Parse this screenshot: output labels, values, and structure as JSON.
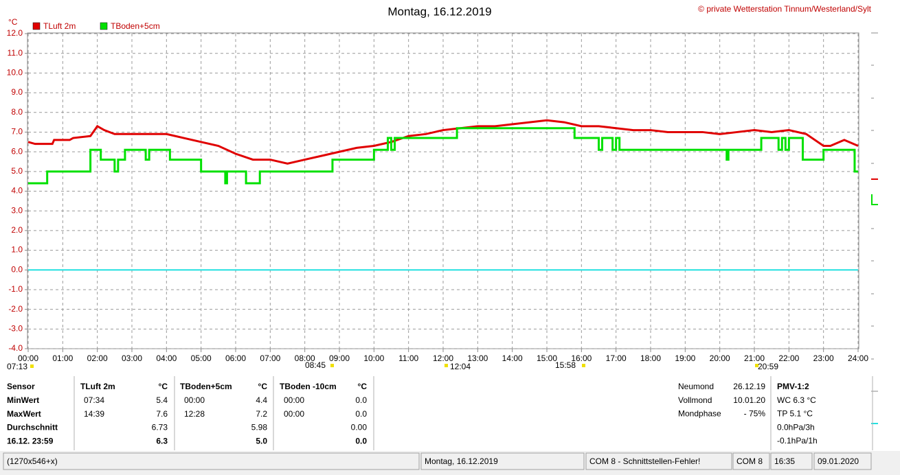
{
  "chart_data": {
    "type": "line",
    "title": "Montag, 16.12.2019",
    "copyright": "© private Wetterstation Tinnum/Westerland/Sylt",
    "y_label": "°C",
    "xlim": [
      0,
      24
    ],
    "ylim": [
      -4,
      12
    ],
    "xticks": [
      {
        "value": 0,
        "label": "00:00"
      },
      {
        "value": 1,
        "label": "01:00"
      },
      {
        "value": 2,
        "label": "02:00"
      },
      {
        "value": 3,
        "label": "03:00"
      },
      {
        "value": 4,
        "label": "04:00"
      },
      {
        "value": 5,
        "label": "05:00"
      },
      {
        "value": 6,
        "label": "06:00"
      },
      {
        "value": 7,
        "label": "07:00"
      },
      {
        "value": 8,
        "label": "08:00"
      },
      {
        "value": 9,
        "label": "09:00"
      },
      {
        "value": 10,
        "label": "10:00"
      },
      {
        "value": 11,
        "label": "11:00"
      },
      {
        "value": 12,
        "label": "12:00"
      },
      {
        "value": 13,
        "label": "13:00"
      },
      {
        "value": 14,
        "label": "14:00"
      },
      {
        "value": 15,
        "label": "15:00"
      },
      {
        "value": 16,
        "label": "16:00"
      },
      {
        "value": 17,
        "label": "17:00"
      },
      {
        "value": 18,
        "label": "18:00"
      },
      {
        "value": 19,
        "label": "19:00"
      },
      {
        "value": 20,
        "label": "20:00"
      },
      {
        "value": 21,
        "label": "21:00"
      },
      {
        "value": 22,
        "label": "22:00"
      },
      {
        "value": 23,
        "label": "23:00"
      },
      {
        "value": 24,
        "label": "24:00"
      }
    ],
    "yticks": [
      {
        "value": 12,
        "label": "12.0"
      },
      {
        "value": 11,
        "label": "11.0"
      },
      {
        "value": 10,
        "label": "10.0"
      },
      {
        "value": 9,
        "label": "9.0"
      },
      {
        "value": 8,
        "label": "8.0"
      },
      {
        "value": 7,
        "label": "7.0"
      },
      {
        "value": 6,
        "label": "6.0"
      },
      {
        "value": 5,
        "label": "5.0"
      },
      {
        "value": 4,
        "label": "4.0"
      },
      {
        "value": 3,
        "label": "3.0"
      },
      {
        "value": 2,
        "label": "2.0"
      },
      {
        "value": 1,
        "label": "1.0"
      },
      {
        "value": 0,
        "label": "0.0"
      },
      {
        "value": -1,
        "label": "-1.0"
      },
      {
        "value": -2,
        "label": "-2.0"
      },
      {
        "value": -3,
        "label": "-3.0"
      },
      {
        "value": -4,
        "label": "-4.0"
      }
    ],
    "grid": true,
    "hline": {
      "value": 0,
      "color": "#22e0e0"
    },
    "annotations": [
      "07:13",
      "08:45",
      "12:04",
      "15:58",
      "20:59"
    ],
    "series": [
      {
        "name": "TLuft 2m",
        "color": "#e00000",
        "step": false,
        "x": [
          0,
          0.2,
          0.7,
          0.75,
          1.2,
          1.3,
          1.8,
          2.0,
          2.2,
          2.5,
          3.0,
          4.0,
          4.5,
          5.0,
          5.5,
          6.0,
          6.5,
          7.0,
          7.5,
          8.0,
          8.5,
          9.0,
          9.5,
          10.0,
          10.5,
          11.0,
          11.5,
          12.0,
          12.5,
          13.0,
          13.5,
          14.0,
          14.5,
          15.0,
          15.5,
          16.0,
          16.5,
          17.0,
          17.5,
          18.0,
          18.5,
          19.0,
          19.5,
          20.0,
          20.5,
          21.0,
          21.5,
          22.0,
          22.5,
          23.0,
          23.2,
          23.6,
          24.0
        ],
        "values": [
          6.5,
          6.4,
          6.4,
          6.6,
          6.6,
          6.7,
          6.8,
          7.3,
          7.1,
          6.9,
          6.9,
          6.9,
          6.7,
          6.5,
          6.3,
          5.9,
          5.6,
          5.6,
          5.4,
          5.6,
          5.8,
          6.0,
          6.2,
          6.3,
          6.5,
          6.8,
          6.9,
          7.1,
          7.2,
          7.3,
          7.3,
          7.4,
          7.5,
          7.6,
          7.5,
          7.3,
          7.3,
          7.2,
          7.1,
          7.1,
          7.0,
          7.0,
          7.0,
          6.9,
          7.0,
          7.1,
          7.0,
          7.1,
          6.9,
          6.3,
          6.3,
          6.6,
          6.3
        ]
      },
      {
        "name": "TBoden+5cm",
        "color": "#00e000",
        "step": true,
        "x": [
          0,
          0.55,
          1.8,
          2.1,
          2.5,
          2.6,
          2.8,
          3.4,
          3.5,
          4.1,
          5.0,
          5.7,
          5.75,
          6.3,
          6.7,
          8.8,
          10.0,
          10.4,
          10.5,
          10.6,
          12.4,
          15.8,
          16.5,
          16.6,
          16.9,
          17.0,
          17.1,
          20.2,
          20.25,
          21.2,
          21.7,
          21.8,
          21.9,
          22.0,
          22.4,
          23.0,
          23.9,
          24.0
        ],
        "values": [
          4.4,
          5.0,
          6.1,
          5.6,
          5.0,
          5.6,
          6.1,
          5.6,
          6.1,
          5.6,
          5.0,
          4.4,
          5.0,
          4.4,
          5.0,
          5.6,
          6.1,
          6.7,
          6.1,
          6.7,
          7.2,
          6.7,
          6.1,
          6.7,
          6.1,
          6.7,
          6.1,
          5.6,
          6.1,
          6.7,
          6.1,
          6.7,
          6.1,
          6.7,
          5.6,
          6.1,
          5.0,
          5.0
        ]
      }
    ]
  },
  "table": {
    "header": [
      "Sensor",
      "TLuft 2m",
      "°C",
      "TBoden+5cm",
      "°C",
      "TBoden -10cm",
      "°C"
    ],
    "rows": [
      [
        "MinWert",
        "07:34",
        "5.4",
        "00:00",
        "4.4",
        "00:00",
        "0.0"
      ],
      [
        "MaxWert",
        "14:39",
        "7.6",
        "12:28",
        "7.2",
        "00:00",
        "0.0"
      ],
      [
        "Durchschnitt",
        null,
        "6.73",
        null,
        "5.98",
        null,
        "0.00"
      ],
      [
        "16.12. 23:59",
        null,
        "6.3",
        null,
        "5.0",
        null,
        "0.0"
      ]
    ]
  },
  "moon": [
    [
      "Neumond",
      "26.12.19"
    ],
    [
      "Vollmond",
      "10.01.20"
    ],
    [
      "Mondphase",
      "- 75%"
    ]
  ],
  "pmv": [
    "PMV-1:2",
    "WC 6.3 °C",
    "TP 5.1 °C",
    "0.0hPa/3h",
    "-0.1hPa/1h"
  ],
  "status": [
    "(1270x546+x)",
    "Montag, 16.12.2019",
    "COM 8 - Schnittstellen-Fehler!",
    "COM 8",
    "16:35",
    "09.01.2020"
  ]
}
